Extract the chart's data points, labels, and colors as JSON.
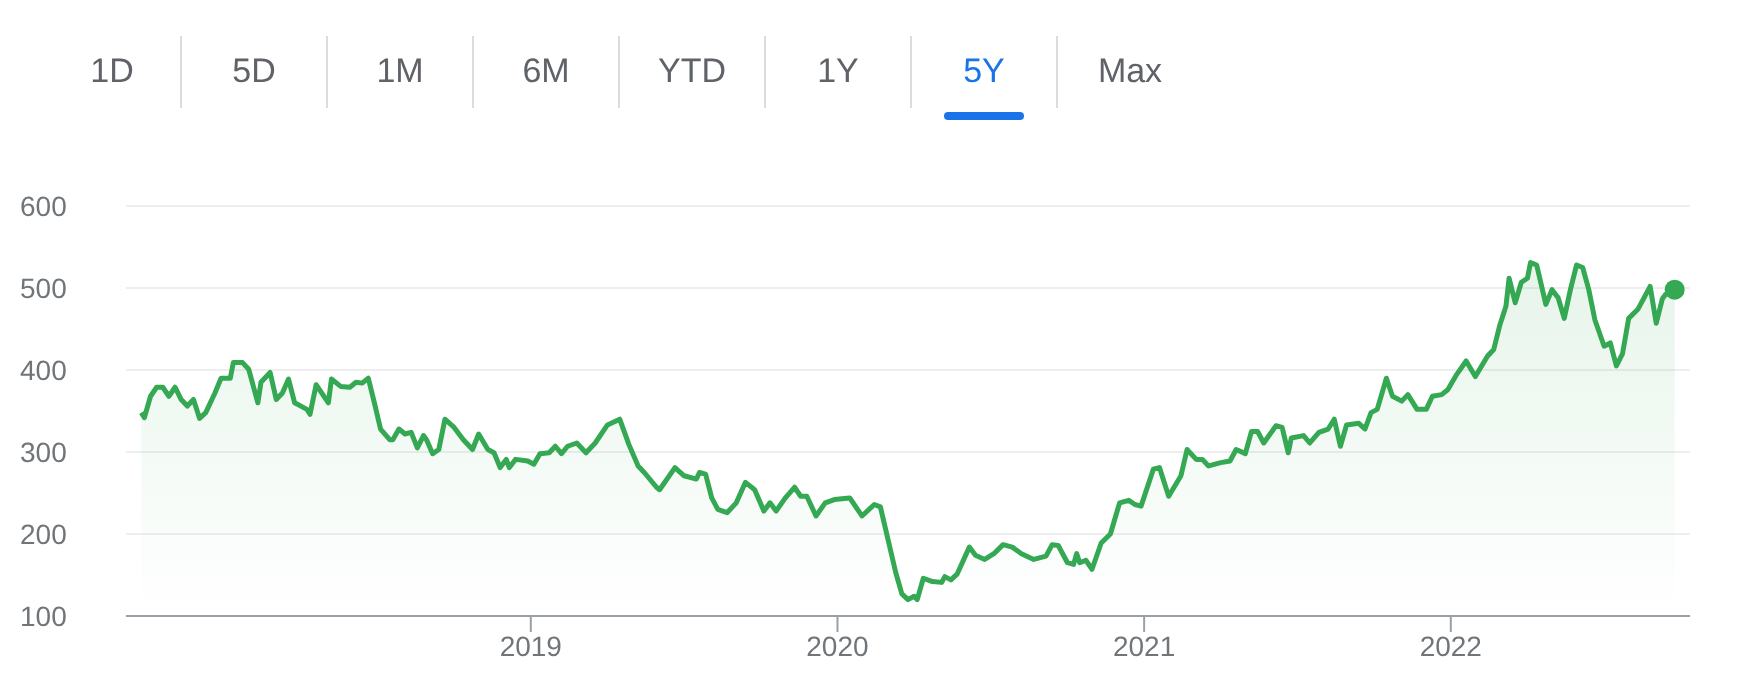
{
  "chart_data": {
    "type": "area",
    "annotations": [
      "1D",
      "5D",
      "1M",
      "6M",
      "YTD",
      "1Y",
      "5Y",
      "Max"
    ],
    "xlim": [
      2017.68,
      2022.78
    ],
    "xticks": [
      2019,
      2020,
      2021,
      2022
    ],
    "ylim": [
      100,
      600
    ],
    "yticks": [
      100,
      200,
      300,
      400,
      500,
      600
    ],
    "grid": "y",
    "series": [
      {
        "color": "#34a853",
        "x": [
          2017.73,
          2017.74,
          2017.76,
          2017.78,
          2017.8,
          2017.82,
          2017.84,
          2017.86,
          2017.88,
          2017.9,
          2017.92,
          2017.94,
          2017.97,
          2017.99,
          2018.02,
          2018.03,
          2018.06,
          2018.08,
          2018.11,
          2018.12,
          2018.15,
          2018.17,
          2018.19,
          2018.21,
          2018.23,
          2018.27,
          2018.28,
          2018.3,
          2018.34,
          2018.35,
          2018.38,
          2018.41,
          2018.43,
          2018.45,
          2018.47,
          2018.49,
          2018.51,
          2018.54,
          2018.55,
          2018.57,
          2018.59,
          2018.61,
          2018.63,
          2018.65,
          2018.66,
          2018.68,
          2018.7,
          2018.72,
          2018.75,
          2018.78,
          2018.81,
          2018.83,
          2018.86,
          2018.88,
          2018.9,
          2018.92,
          2018.93,
          2018.95,
          2018.99,
          2019.01,
          2019.03,
          2019.06,
          2019.08,
          2019.1,
          2019.12,
          2019.15,
          2019.18,
          2019.21,
          2019.25,
          2019.29,
          2019.32,
          2019.35,
          2019.37,
          2019.41,
          2019.42,
          2019.47,
          2019.5,
          2019.54,
          2019.55,
          2019.57,
          2019.59,
          2019.61,
          2019.64,
          2019.67,
          2019.7,
          2019.73,
          2019.76,
          2019.78,
          2019.8,
          2019.83,
          2019.86,
          2019.88,
          2019.9,
          2019.93,
          2019.96,
          2019.99,
          2020.04,
          2020.08,
          2020.12,
          2020.14,
          2020.17,
          2020.19,
          2020.21,
          2020.23,
          2020.25,
          2020.26,
          2020.28,
          2020.31,
          2020.34,
          2020.35,
          2020.37,
          2020.39,
          2020.43,
          2020.45,
          2020.48,
          2020.51,
          2020.54,
          2020.57,
          2020.6,
          2020.64,
          2020.68,
          2020.7,
          2020.72,
          2020.75,
          2020.77,
          2020.78,
          2020.79,
          2020.81,
          2020.83,
          2020.86,
          2020.89,
          2020.92,
          2020.95,
          2020.97,
          2020.99,
          2021.03,
          2021.05,
          2021.08,
          2021.12,
          2021.14,
          2021.17,
          2021.19,
          2021.21,
          2021.25,
          2021.28,
          2021.3,
          2021.33,
          2021.35,
          2021.37,
          2021.39,
          2021.43,
          2021.45,
          2021.47,
          2021.48,
          2021.52,
          2021.54,
          2021.57,
          2021.6,
          2021.62,
          2021.64,
          2021.66,
          2021.7,
          2021.72,
          2021.74,
          2021.76,
          2021.79,
          2021.81,
          2021.84,
          2021.86,
          2021.89,
          2021.92,
          2021.94,
          2021.97,
          2021.99,
          2022.02,
          2022.05,
          2022.08,
          2022.12,
          2022.14,
          2022.16,
          2022.18,
          2022.19,
          2022.21,
          2022.23,
          2022.25,
          2022.26,
          2022.28,
          2022.31,
          2022.33,
          2022.35,
          2022.37,
          2022.39,
          2022.41,
          2022.43,
          2022.45,
          2022.47,
          2022.5,
          2022.52,
          2022.54,
          2022.56,
          2022.58,
          2022.61,
          2022.65,
          2022.67,
          2022.69,
          2022.7,
          2022.73
        ],
        "values": [
          348,
          342,
          368,
          379,
          379,
          368,
          379,
          364,
          356,
          364,
          341,
          348,
          372,
          390,
          390,
          409,
          409,
          401,
          360,
          385,
          397,
          364,
          372,
          389,
          360,
          352,
          346,
          382,
          360,
          389,
          380,
          379,
          385,
          384,
          390,
          360,
          328,
          315,
          315,
          328,
          322,
          324,
          305,
          320,
          315,
          298,
          303,
          340,
          330,
          315,
          303,
          322,
          303,
          299,
          281,
          291,
          281,
          291,
          289,
          285,
          298,
          299,
          307,
          298,
          307,
          311,
          299,
          311,
          333,
          340,
          309,
          283,
          275,
          257,
          254,
          281,
          271,
          267,
          275,
          273,
          244,
          230,
          226,
          238,
          263,
          254,
          228,
          238,
          228,
          244,
          257,
          246,
          246,
          222,
          238,
          242,
          244,
          222,
          236,
          233,
          185,
          153,
          127,
          120,
          124,
          120,
          146,
          142,
          141,
          148,
          144,
          151,
          184,
          174,
          169,
          176,
          187,
          184,
          176,
          169,
          173,
          187,
          186,
          165,
          163,
          176,
          165,
          168,
          157,
          189,
          200,
          238,
          241,
          236,
          234,
          279,
          281,
          246,
          271,
          303,
          291,
          291,
          283,
          287,
          289,
          303,
          298,
          325,
          325,
          311,
          332,
          330,
          299,
          317,
          320,
          311,
          324,
          328,
          340,
          307,
          333,
          335,
          328,
          348,
          352,
          390,
          368,
          362,
          370,
          352,
          352,
          368,
          370,
          376,
          395,
          411,
          392,
          417,
          425,
          455,
          478,
          512,
          482,
          507,
          512,
          531,
          528,
          480,
          498,
          488,
          463,
          498,
          528,
          525,
          498,
          461,
          429,
          433,
          405,
          420,
          463,
          474,
          502,
          457,
          487,
          492,
          498
        ]
      }
    ]
  }
}
